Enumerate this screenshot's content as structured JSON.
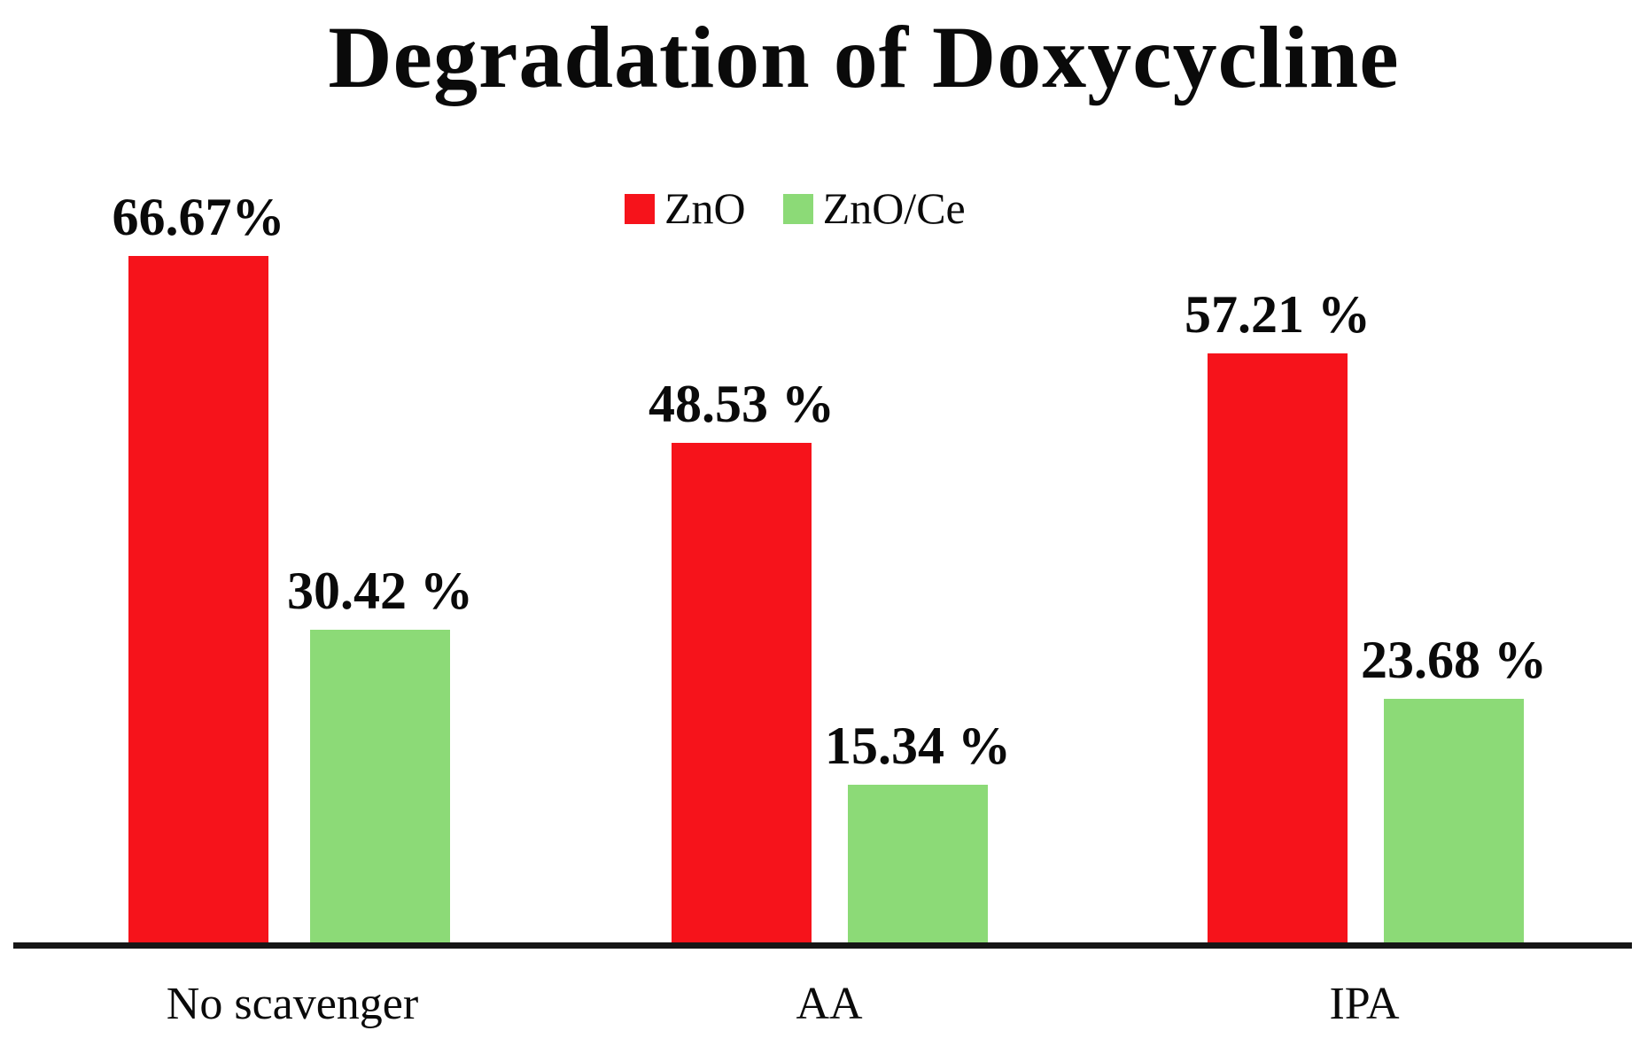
{
  "chart_data": {
    "type": "bar",
    "title": "Degradation of Doxycycline",
    "categories": [
      "No scavenger",
      "AA",
      "IPA"
    ],
    "series": [
      {
        "name": "ZnO",
        "color": "#f6131b",
        "values": [
          66.67,
          48.53,
          57.21
        ],
        "value_labels": [
          "66.67%",
          "48.53 %",
          "57.21 %"
        ]
      },
      {
        "name": "ZnO/Ce",
        "color": "#8cda77",
        "values": [
          30.42,
          15.34,
          23.68
        ],
        "value_labels": [
          "30.42 %",
          "15.34 %",
          "23.68 %"
        ]
      }
    ],
    "unit": "%",
    "xlabel": "",
    "ylabel": "",
    "ylim": [
      0,
      100
    ],
    "grid": false,
    "y_axis_visible": false,
    "x_axis_visible": true,
    "legend_position": "top-center",
    "value_labels_shown": true
  }
}
